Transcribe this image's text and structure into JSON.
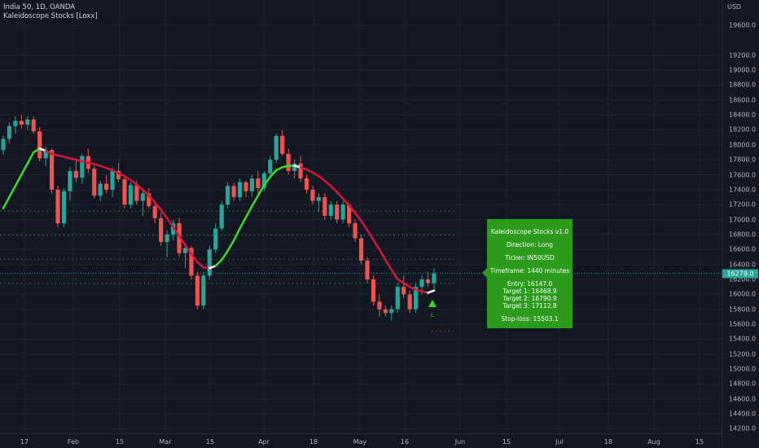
{
  "legend": {
    "symbol": "India 50, 1D, OANDA",
    "indicator": "Kaleidoscope Stocks [Loxx]"
  },
  "price_scale": {
    "unit": "USD",
    "ticks": [
      "19600.0",
      "19200.0",
      "19000.0",
      "18800.0",
      "18600.0",
      "18400.0",
      "18200.0",
      "18000.0",
      "17800.0",
      "17600.0",
      "17400.0",
      "17200.0",
      "17000.0",
      "16800.0",
      "16600.0",
      "16400.0",
      "16200.0",
      "16000.0",
      "15800.0",
      "15600.0",
      "15400.0",
      "15200.0",
      "15000.0",
      "14800.0",
      "14600.0",
      "14400.0",
      "14200.0"
    ],
    "last_price": "16279.0"
  },
  "time_scale": {
    "ticks": [
      "17",
      "Feb",
      "15",
      "Mar",
      "15",
      "Apr",
      "18",
      "May",
      "16",
      "Jun",
      "15",
      "Jul",
      "18",
      "Aug",
      "15"
    ]
  },
  "signal_box": {
    "title": "Kaleidoscope Stocks v1.0",
    "direction": "Direction: Long",
    "ticker": "Ticker: IN50USD",
    "timeframe": "Timeframe: 1440 minutes",
    "entry": "Entry: 16147.0",
    "target1": "Target 1: 16468.9",
    "target2": "Target 2: 16790.9",
    "target3": "Target 3: 17112.8",
    "stoploss": "Stop-loss: 15503.1"
  },
  "signal_marker": {
    "label": "L"
  },
  "colors": {
    "background": "#131722",
    "bull_candle": "#26a69a",
    "bear_candle": "#ef5350",
    "ma_up": "#3bd62f",
    "ma_down": "#d2173c",
    "signal_box": "#2b9b1c",
    "level_line": "#4caf50"
  },
  "chart_data": {
    "type": "candlestick",
    "ohlc": [
      [
        17930,
        18120,
        17870,
        18080
      ],
      [
        18080,
        18300,
        18020,
        18250
      ],
      [
        18250,
        18380,
        18150,
        18320
      ],
      [
        18320,
        18400,
        18220,
        18270
      ],
      [
        18270,
        18380,
        18200,
        18340
      ],
      [
        18340,
        18380,
        18150,
        18180
      ],
      [
        18180,
        18240,
        17780,
        17820
      ],
      [
        17820,
        17980,
        17720,
        17930
      ],
      [
        17930,
        17950,
        17350,
        17400
      ],
      [
        17400,
        17450,
        16900,
        16950
      ],
      [
        16950,
        17420,
        16900,
        17380
      ],
      [
        17380,
        17700,
        17250,
        17650
      ],
      [
        17650,
        17820,
        17500,
        17560
      ],
      [
        17560,
        17880,
        17480,
        17850
      ],
      [
        17850,
        17950,
        17620,
        17680
      ],
      [
        17680,
        17720,
        17280,
        17320
      ],
      [
        17320,
        17520,
        17250,
        17480
      ],
      [
        17480,
        17600,
        17350,
        17400
      ],
      [
        17400,
        17700,
        17300,
        17650
      ],
      [
        17650,
        17760,
        17500,
        17540
      ],
      [
        17540,
        17600,
        17150,
        17200
      ],
      [
        17200,
        17500,
        17150,
        17460
      ],
      [
        17460,
        17520,
        17200,
        17250
      ],
      [
        17250,
        17400,
        17050,
        17350
      ],
      [
        17350,
        17420,
        17150,
        17180
      ],
      [
        17180,
        17250,
        16950,
        17020
      ],
      [
        17020,
        17100,
        16650,
        16700
      ],
      [
        16700,
        16850,
        16500,
        16800
      ],
      [
        16800,
        17000,
        16720,
        16950
      ],
      [
        16950,
        17020,
        16500,
        16550
      ],
      [
        16550,
        16680,
        16350,
        16620
      ],
      [
        16620,
        16650,
        16200,
        16250
      ],
      [
        16250,
        16300,
        15800,
        15850
      ],
      [
        15850,
        16300,
        15800,
        16250
      ],
      [
        16250,
        16650,
        16200,
        16600
      ],
      [
        16600,
        16950,
        16550,
        16880
      ],
      [
        16880,
        17250,
        16850,
        17200
      ],
      [
        17200,
        17500,
        17150,
        17450
      ],
      [
        17450,
        17500,
        17250,
        17300
      ],
      [
        17300,
        17550,
        17250,
        17500
      ],
      [
        17500,
        17520,
        17300,
        17380
      ],
      [
        17380,
        17600,
        17300,
        17550
      ],
      [
        17550,
        17650,
        17350,
        17420
      ],
      [
        17420,
        17650,
        17380,
        17620
      ],
      [
        17620,
        17850,
        17550,
        17800
      ],
      [
        17800,
        18150,
        17750,
        18120
      ],
      [
        18120,
        18200,
        17850,
        17880
      ],
      [
        17880,
        17950,
        17600,
        17650
      ],
      [
        17650,
        17800,
        17550,
        17750
      ],
      [
        17750,
        17850,
        17500,
        17550
      ],
      [
        17550,
        17600,
        17350,
        17400
      ],
      [
        17400,
        17450,
        17200,
        17250
      ],
      [
        17250,
        17350,
        17100,
        17300
      ],
      [
        17300,
        17350,
        17000,
        17050
      ],
      [
        17050,
        17250,
        17000,
        17200
      ],
      [
        17200,
        17250,
        16950,
        17000
      ],
      [
        17000,
        17250,
        16950,
        17200
      ],
      [
        17200,
        17220,
        16900,
        16950
      ],
      [
        16950,
        17000,
        16700,
        16750
      ],
      [
        16750,
        16800,
        16400,
        16450
      ],
      [
        16450,
        16500,
        16150,
        16200
      ],
      [
        16200,
        16250,
        15850,
        15900
      ],
      [
        15900,
        16000,
        15700,
        15800
      ],
      [
        15800,
        15850,
        15700,
        15750
      ],
      [
        15750,
        15850,
        15650,
        15800
      ],
      [
        15800,
        16150,
        15750,
        16100
      ],
      [
        16100,
        16250,
        15950,
        16000
      ],
      [
        16000,
        16050,
        15750,
        15800
      ],
      [
        15800,
        16150,
        15750,
        16100
      ],
      [
        16100,
        16250,
        16000,
        16200
      ],
      [
        16200,
        16300,
        16100,
        16150
      ],
      [
        16150,
        16350,
        16050,
        16279
      ]
    ],
    "moving_average": [
      17150,
      17300,
      17450,
      17600,
      17750,
      17900,
      17950,
      17920,
      17880,
      17860,
      17840,
      17820,
      17800,
      17780,
      17760,
      17740,
      17720,
      17690,
      17660,
      17620,
      17580,
      17530,
      17470,
      17400,
      17320,
      17230,
      17130,
      17020,
      16900,
      16780,
      16660,
      16540,
      16430,
      16360,
      16350,
      16380,
      16460,
      16580,
      16720,
      16880,
      17030,
      17180,
      17320,
      17460,
      17570,
      17660,
      17700,
      17720,
      17720,
      17700,
      17670,
      17630,
      17580,
      17520,
      17450,
      17370,
      17280,
      17190,
      17090,
      16980,
      16860,
      16730,
      16600,
      16460,
      16330,
      16200,
      16150,
      16100,
      16060,
      16040,
      16020,
      16050
    ],
    "levels": [
      {
        "name": "Target 3",
        "value": 17112.8
      },
      {
        "name": "Target 2",
        "value": 16790.9
      },
      {
        "name": "Target 1",
        "value": 16468.9
      },
      {
        "name": "Entry",
        "value": 16147.0
      },
      {
        "name": "Stop-loss",
        "value": 15503.1
      }
    ],
    "ylim": [
      14100,
      19900
    ],
    "scale": "linear",
    "grid": true
  }
}
